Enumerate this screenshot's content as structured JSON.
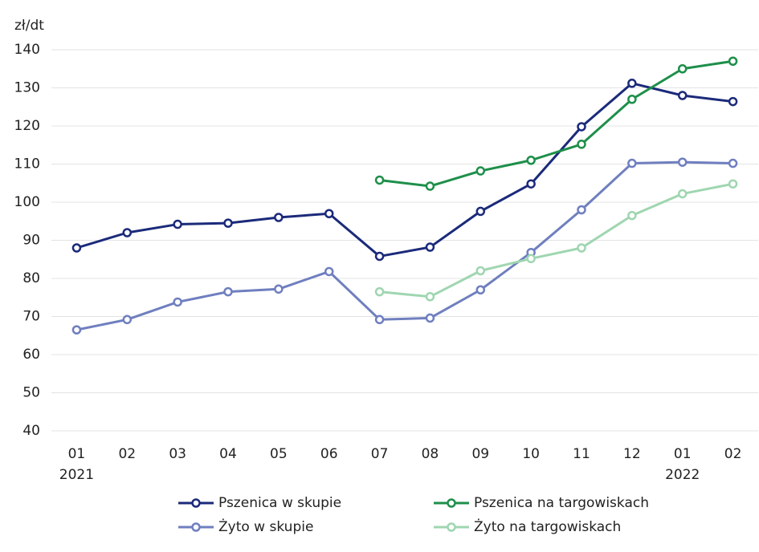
{
  "chart_data": {
    "type": "line",
    "y_unit": "zł/dt",
    "categories": [
      "01",
      "02",
      "03",
      "04",
      "05",
      "06",
      "07",
      "08",
      "09",
      "10",
      "11",
      "12",
      "01",
      "02"
    ],
    "category_years": [
      "2021",
      null,
      null,
      null,
      null,
      null,
      null,
      null,
      null,
      null,
      null,
      null,
      "2022",
      null
    ],
    "ylim": [
      40,
      140
    ],
    "yticks": [
      40,
      50,
      60,
      70,
      80,
      90,
      100,
      110,
      120,
      130,
      140
    ],
    "grid": true,
    "series": [
      {
        "name": "Pszenica w skupie",
        "color": "#1b2a7a",
        "values": [
          88,
          92,
          94.2,
          94.5,
          96,
          97,
          85.8,
          88.2,
          97.6,
          104.8,
          119.8,
          131.2,
          128,
          126.4
        ]
      },
      {
        "name": "Pszenica na targowiskach",
        "color": "#1e8f4a",
        "values": [
          null,
          null,
          null,
          null,
          null,
          null,
          105.8,
          104.2,
          108.2,
          111,
          115.2,
          127,
          135,
          137
        ]
      },
      {
        "name": "Żyto w skupie",
        "color": "#6f7fbf",
        "values": [
          66.5,
          69.2,
          73.8,
          76.5,
          77.2,
          81.8,
          69.2,
          69.6,
          77,
          86.8,
          98,
          110.2,
          110.5,
          110.2
        ]
      },
      {
        "name": "Żyto na targowiskach",
        "color": "#9fd6b0",
        "values": [
          null,
          null,
          null,
          null,
          null,
          null,
          76.5,
          75.2,
          82,
          85.2,
          88,
          96.5,
          102.2,
          104.8
        ]
      }
    ]
  }
}
